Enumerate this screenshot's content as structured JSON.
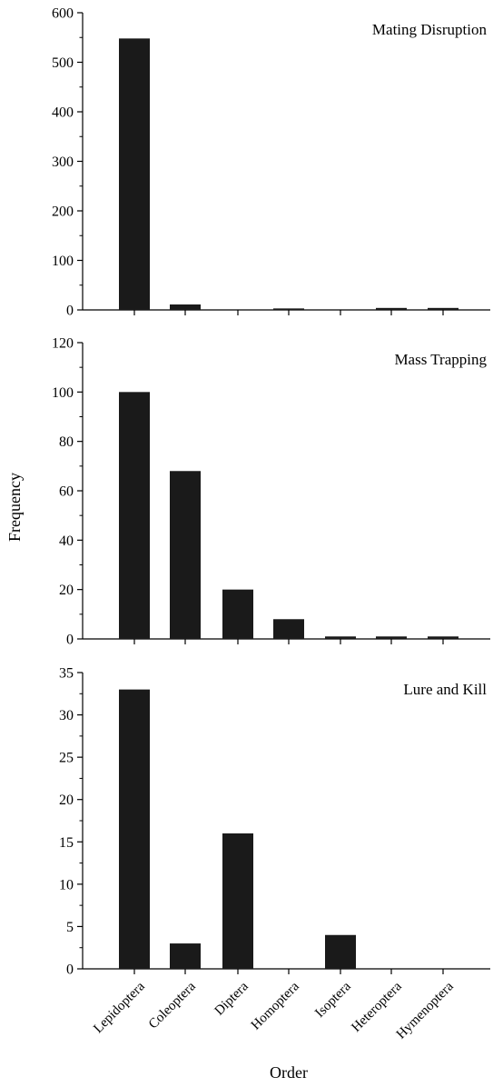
{
  "chart_data": {
    "type": "bar",
    "categories": [
      "Lepidoptera",
      "Coleoptera",
      "Diptera",
      "Homoptera",
      "Isoptera",
      "Heteroptera",
      "Hymenoptera"
    ],
    "xlabel": "Order",
    "ylabel": "Frequency",
    "legend": "none",
    "grid": false,
    "bar_color": "#1a1a1a",
    "panels": [
      {
        "title": "Mating Disruption",
        "ylim": [
          0,
          600
        ],
        "yticks": [
          0,
          100,
          200,
          300,
          400,
          500,
          600
        ],
        "values": [
          548,
          11,
          0,
          3,
          0,
          4,
          4
        ]
      },
      {
        "title": "Mass Trapping",
        "ylim": [
          0,
          120
        ],
        "yticks": [
          0,
          20,
          40,
          60,
          80,
          100,
          120
        ],
        "values": [
          100,
          68,
          20,
          8,
          1,
          1,
          1
        ]
      },
      {
        "title": "Lure and Kill",
        "ylim": [
          0,
          35
        ],
        "yticks": [
          0,
          5,
          10,
          15,
          20,
          25,
          30,
          35
        ],
        "values": [
          33,
          3,
          16,
          0,
          4,
          0,
          0
        ]
      }
    ]
  }
}
